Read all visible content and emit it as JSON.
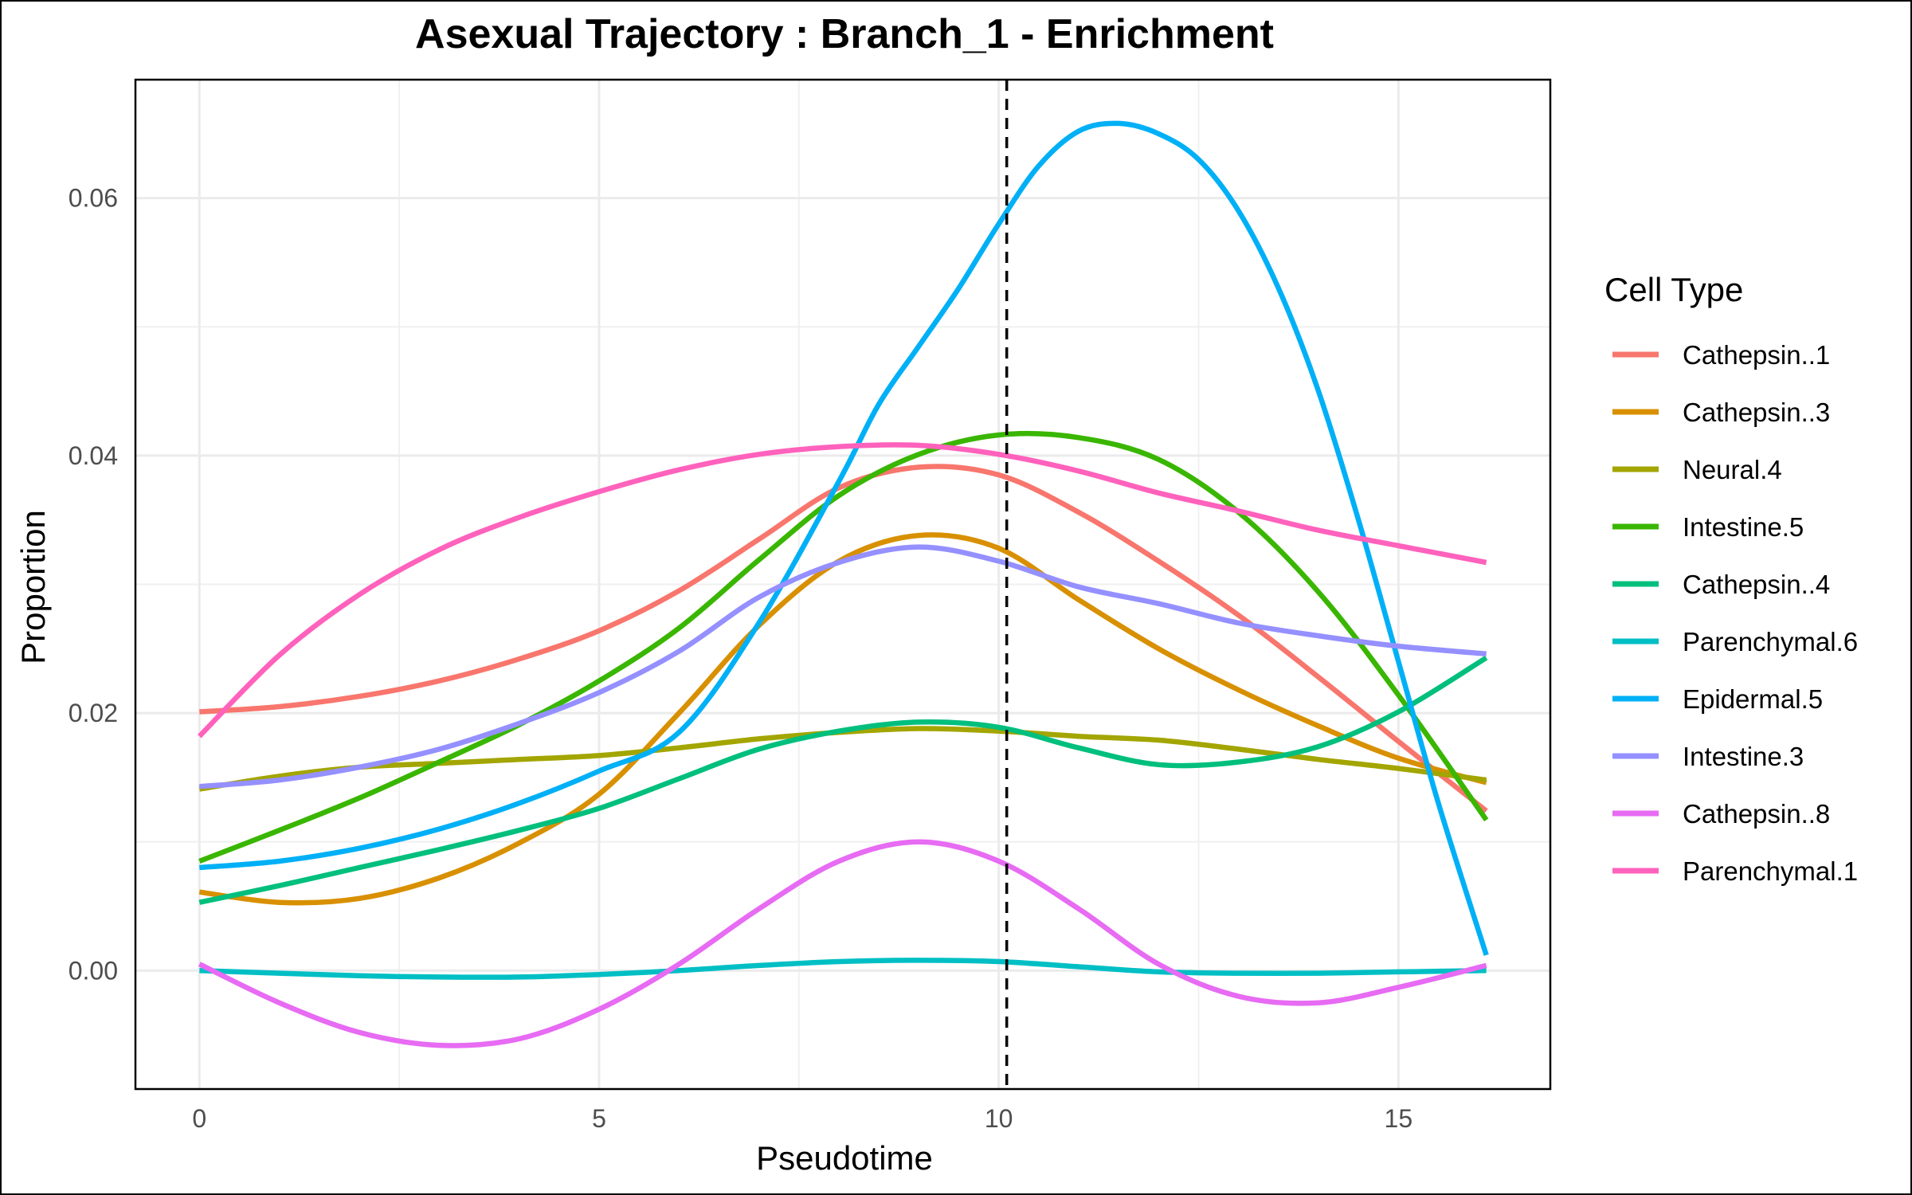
{
  "chart_data": {
    "type": "line",
    "title": "Asexual Trajectory : Branch_1 - Enrichment",
    "xlabel": "Pseudotime",
    "ylabel": "Proportion",
    "xlim": [
      -0.8,
      16.9
    ],
    "ylim": [
      -0.0092,
      0.0692
    ],
    "x_ticks": [
      0,
      5,
      10,
      15
    ],
    "x_tick_labels": [
      "0",
      "5",
      "10",
      "15"
    ],
    "y_ticks": [
      0.0,
      0.02,
      0.04,
      0.06
    ],
    "y_tick_labels": [
      "0.00",
      "0.02",
      "0.04",
      "0.06"
    ],
    "grid": true,
    "vline": {
      "x": 10.1,
      "style": "dashed",
      "color": "#000000"
    },
    "legend": {
      "title": "Cell Type",
      "position": "right"
    },
    "series": [
      {
        "name": "Cathepsin..1",
        "color": "#F8766D",
        "x": [
          0,
          1,
          2,
          3,
          4,
          5,
          6,
          7,
          8,
          9,
          10,
          11,
          12,
          13,
          14,
          15,
          16.1
        ],
        "y": [
          0.0201,
          0.0205,
          0.0213,
          0.0225,
          0.0242,
          0.0264,
          0.0295,
          0.0335,
          0.0375,
          0.0391,
          0.0385,
          0.0356,
          0.0318,
          0.0276,
          0.0228,
          0.0178,
          0.0124
        ]
      },
      {
        "name": "Cathepsin..3",
        "color": "#D89000",
        "x": [
          0,
          1,
          2,
          3,
          4,
          5,
          6,
          7,
          8,
          9,
          10,
          11,
          12,
          13,
          14,
          15,
          16.1
        ],
        "y": [
          0.0061,
          0.0053,
          0.0056,
          0.0072,
          0.0099,
          0.0137,
          0.02,
          0.0268,
          0.0318,
          0.0338,
          0.0328,
          0.0288,
          0.025,
          0.0218,
          0.019,
          0.0165,
          0.0146
        ]
      },
      {
        "name": "Neural.4",
        "color": "#A3A500",
        "x": [
          0,
          1,
          2,
          3,
          4,
          5,
          6,
          7,
          8,
          9,
          10,
          11,
          12,
          13,
          14,
          15,
          16.1
        ],
        "y": [
          0.0141,
          0.0151,
          0.0158,
          0.0161,
          0.0164,
          0.0167,
          0.0173,
          0.018,
          0.0185,
          0.0188,
          0.0186,
          0.0182,
          0.0179,
          0.0172,
          0.0164,
          0.0157,
          0.0148
        ]
      },
      {
        "name": "Intestine.5",
        "color": "#39B600",
        "x": [
          0,
          1,
          2,
          3,
          4,
          5,
          6,
          7,
          8,
          9,
          10,
          11,
          12,
          13,
          14,
          15,
          16.1
        ],
        "y": [
          0.0085,
          0.0109,
          0.0134,
          0.0162,
          0.0191,
          0.0225,
          0.0266,
          0.0319,
          0.0369,
          0.0401,
          0.0416,
          0.0414,
          0.0397,
          0.0356,
          0.0294,
          0.0214,
          0.0117
        ]
      },
      {
        "name": "Cathepsin..4",
        "color": "#00BF7D",
        "x": [
          0,
          1,
          2,
          3,
          4,
          5,
          6,
          7,
          8,
          9,
          10,
          11,
          12,
          13,
          14,
          15,
          16.1
        ],
        "y": [
          0.0053,
          0.0066,
          0.008,
          0.0094,
          0.0109,
          0.0126,
          0.0149,
          0.0172,
          0.0186,
          0.0193,
          0.0189,
          0.0173,
          0.016,
          0.0162,
          0.0174,
          0.0201,
          0.0243
        ]
      },
      {
        "name": "Parenchymal.6",
        "color": "#00BFC4",
        "x": [
          0,
          1,
          2,
          3,
          4,
          5,
          6,
          7,
          8,
          9,
          10,
          11,
          12,
          13,
          14,
          15,
          16.1
        ],
        "y": [
          0.0,
          -0.0002,
          -0.0004,
          -0.0005,
          -0.0005,
          -0.0003,
          0.0,
          0.0004,
          0.0007,
          0.0008,
          0.0007,
          0.0003,
          -0.0001,
          -0.0002,
          -0.0002,
          -0.0001,
          0.0
        ]
      },
      {
        "name": "Epidermal.5",
        "color": "#00B0F6",
        "x": [
          0,
          1,
          2,
          3,
          4,
          5,
          6,
          7,
          8,
          8.5,
          9,
          9.5,
          10,
          10.5,
          11,
          11.5,
          12,
          12.5,
          13,
          13.5,
          14,
          14.5,
          15,
          15.5,
          16.1
        ],
        "y": [
          0.008,
          0.0085,
          0.0095,
          0.011,
          0.013,
          0.0155,
          0.0185,
          0.027,
          0.038,
          0.044,
          0.0485,
          0.053,
          0.058,
          0.0625,
          0.0652,
          0.0658,
          0.065,
          0.063,
          0.059,
          0.053,
          0.045,
          0.035,
          0.024,
          0.013,
          0.0012
        ]
      },
      {
        "name": "Intestine.3",
        "color": "#9590FF",
        "x": [
          0,
          1,
          2,
          3,
          4,
          5,
          6,
          7,
          8,
          9,
          10,
          11,
          12,
          13,
          14,
          15,
          16.1
        ],
        "y": [
          0.0143,
          0.0148,
          0.0158,
          0.0172,
          0.0192,
          0.0216,
          0.0248,
          0.029,
          0.0317,
          0.0329,
          0.0318,
          0.0298,
          0.0285,
          0.027,
          0.026,
          0.0252,
          0.0246
        ]
      },
      {
        "name": "Cathepsin..8",
        "color": "#E76BF3",
        "x": [
          0,
          1,
          2,
          3,
          4,
          5,
          6,
          7,
          8,
          9,
          10,
          11,
          12,
          13,
          14,
          15,
          16.1
        ],
        "y": [
          0.0005,
          -0.0025,
          -0.0048,
          -0.0058,
          -0.0053,
          -0.003,
          0.0005,
          0.0048,
          0.0085,
          0.01,
          0.0085,
          0.0048,
          0.0005,
          -0.002,
          -0.0025,
          -0.0013,
          0.0004
        ]
      },
      {
        "name": "Parenchymal.1",
        "color": "#FF62BC",
        "x": [
          0,
          1,
          2,
          3,
          4,
          5,
          6,
          7,
          8,
          9,
          10,
          11,
          12,
          13,
          14,
          15,
          16.1
        ],
        "y": [
          0.0182,
          0.0245,
          0.0292,
          0.0327,
          0.0352,
          0.0372,
          0.0389,
          0.0401,
          0.0407,
          0.0408,
          0.0401,
          0.0388,
          0.0371,
          0.0357,
          0.0342,
          0.033,
          0.0317
        ]
      }
    ]
  }
}
